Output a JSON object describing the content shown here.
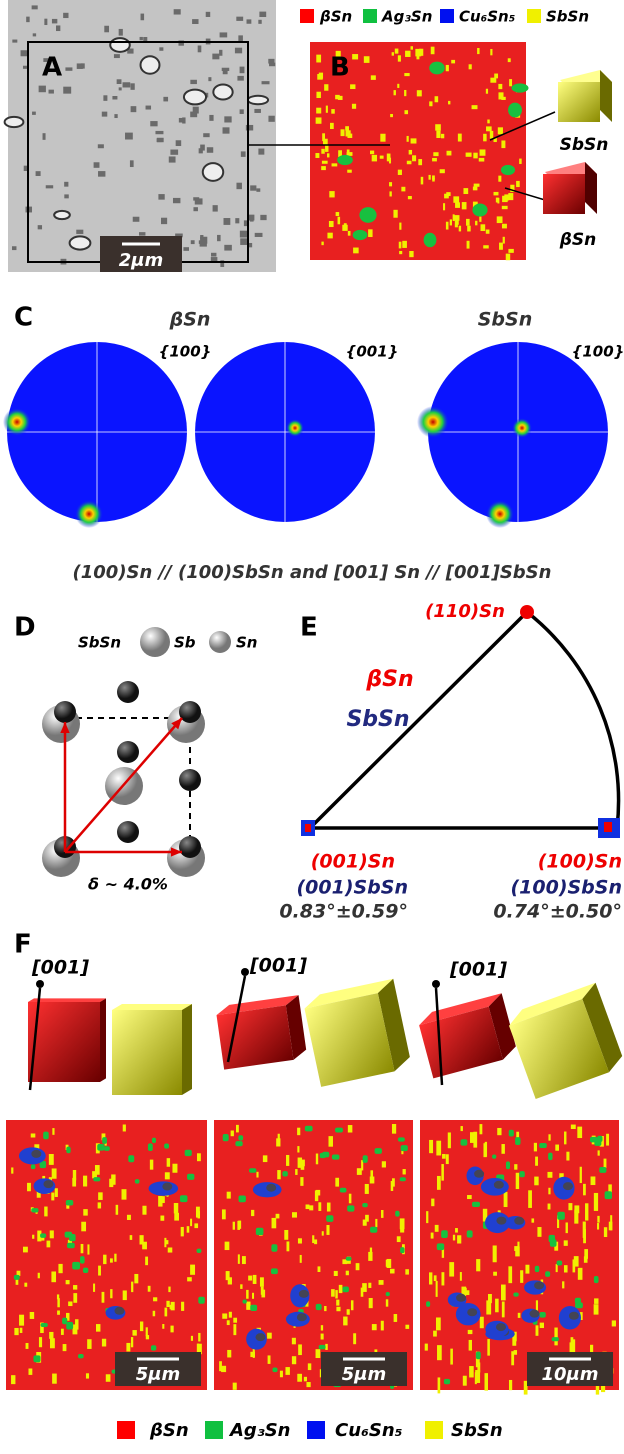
{
  "legend": {
    "items": [
      "βSn",
      "Ag₃Sn",
      "Cu₆Sn₅",
      "SbSn"
    ]
  },
  "panel_a": {
    "label": "A",
    "scale_bar": "2μm"
  },
  "panel_b": {
    "label": "B",
    "cube_labels": [
      "SbSn",
      "βSn"
    ]
  },
  "panel_c": {
    "label": "C",
    "phase_labels": [
      "βSn",
      "SbSn"
    ],
    "pole_figures": [
      "{100}",
      "{001}",
      "{100}"
    ]
  },
  "caption": "(100)Sn // (100)SbSn and [001] Sn // [001]SbSn",
  "panel_d": {
    "label": "D",
    "structure": "SbSn",
    "atoms": [
      "Sb",
      "Sn"
    ],
    "mismatch": "δ ~ 4.0%"
  },
  "panel_e": {
    "label": "E",
    "corner_top": "(110)Sn",
    "legend": [
      "βSn",
      "SbSn"
    ],
    "corner_left": [
      "(001)Sn",
      "(001)SbSn",
      "0.83°±0.59°"
    ],
    "corner_right": [
      "(100)Sn",
      "(100)SbSn",
      "0.74°±0.50°"
    ]
  },
  "panel_f": {
    "label": "F",
    "direction_labels": [
      "[001]",
      "[001]",
      "[001]"
    ],
    "scale_bars": [
      "5μm",
      "5μm",
      "10μm"
    ]
  }
}
